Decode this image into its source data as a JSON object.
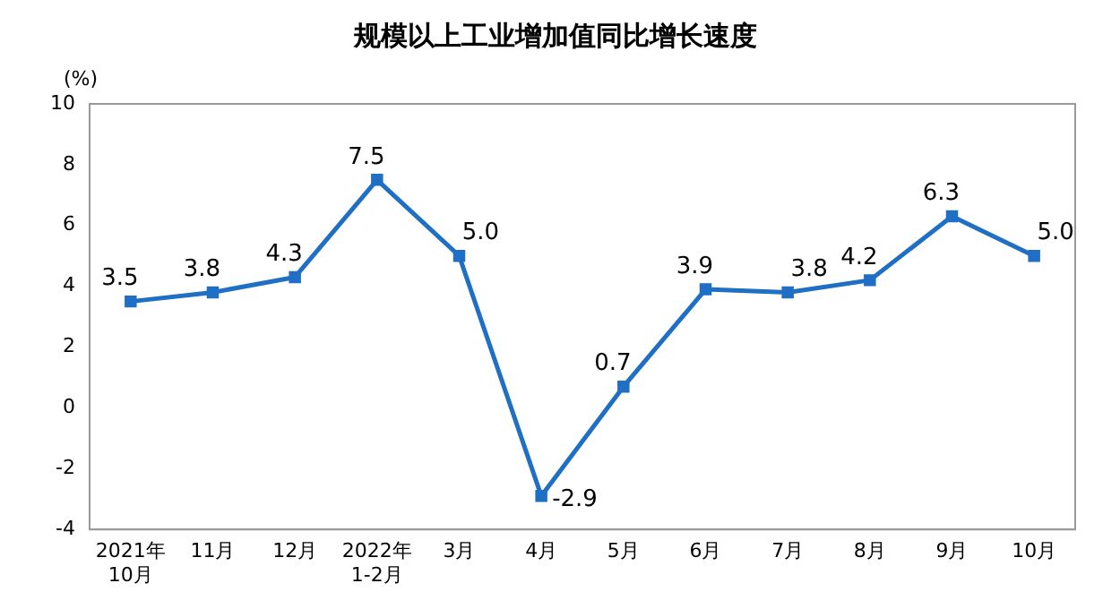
{
  "chart_data": {
    "type": "line",
    "title": "规模以上工业增加值同比增长速度",
    "ylabel": "(%)",
    "categories": [
      "2021年\n10月",
      "11月",
      "12月",
      "2022年\n1-2月",
      "3月",
      "4月",
      "5月",
      "6月",
      "7月",
      "8月",
      "9月",
      "10月"
    ],
    "values": [
      3.5,
      3.8,
      4.3,
      7.5,
      5.0,
      -2.9,
      0.7,
      3.9,
      3.8,
      4.2,
      6.3,
      5.0
    ],
    "value_labels": [
      "3.5",
      "3.8",
      "4.3",
      "7.5",
      "5.0",
      "-2.9",
      "0.7",
      "3.9",
      "3.8",
      "4.2",
      "6.3",
      "5.0"
    ],
    "color": "#1f6fc5",
    "marker": "square",
    "line_style": "solid",
    "grid": false,
    "legend": false,
    "ylim": [
      -4,
      10
    ],
    "yticks": [
      -4,
      -2,
      0,
      2,
      4,
      6,
      8,
      10
    ]
  }
}
